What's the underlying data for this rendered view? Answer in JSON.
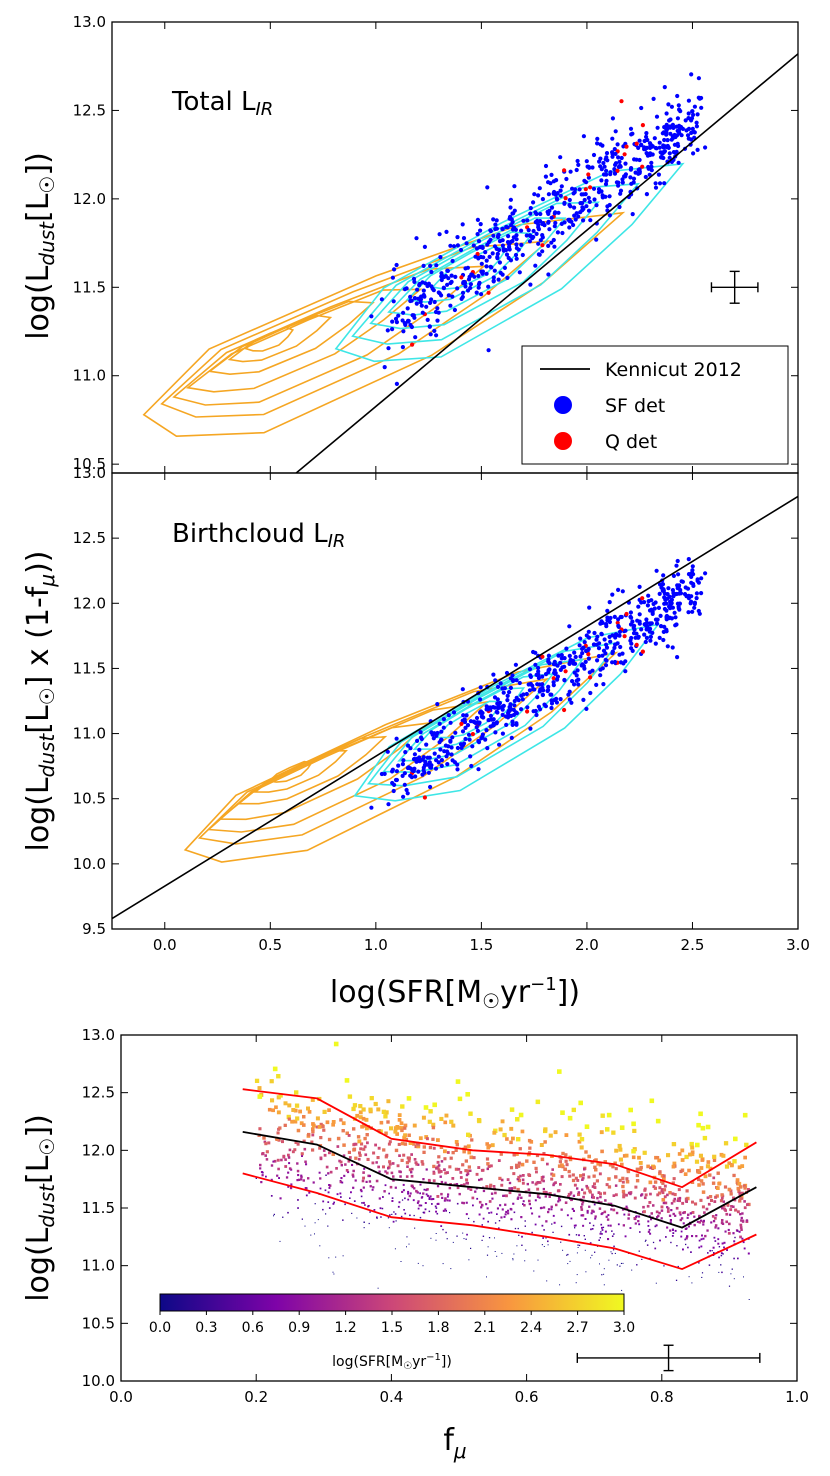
{
  "panel1": {
    "title": "Total L",
    "title_sub": "IR",
    "ylabel_main": "log(L",
    "ylabel_sub": "dust",
    "ylabel_tail": "[L",
    "ylabel_sun": "☉",
    "ylabel_end": "])",
    "xlim": [
      -0.25,
      3.0
    ],
    "ylim": [
      10.45,
      13.0
    ],
    "yticks": [
      "10.5",
      "11.0",
      "11.5",
      "12.0",
      "12.5",
      "13.0"
    ],
    "kennicutt_2012_line": {
      "x": [
        -0.25,
        3.0
      ],
      "y": [
        9.58,
        12.82
      ]
    },
    "errorbar": {
      "x": 2.7,
      "y": 11.5,
      "xerr": 0.11,
      "yerr": 0.09
    },
    "legend": [
      {
        "label": "Kennicut 2012",
        "kind": "line",
        "color": "#000000"
      },
      {
        "label": "SF det",
        "kind": "marker",
        "color": "#0000ff"
      },
      {
        "label": "Q det",
        "kind": "marker",
        "color": "#ff0000"
      }
    ]
  },
  "panel2": {
    "title": "Birthcloud L",
    "title_sub": "IR",
    "ylabel": "log(L_dust[L☉] x (1-f_μ))",
    "ylabel_a": "log(L",
    "ylabel_sub1": "dust",
    "ylabel_b": "[L",
    "ylabel_sun": "☉",
    "ylabel_c": "] x (1-f",
    "ylabel_sub2": "μ",
    "ylabel_d": "))",
    "xlim": [
      -0.25,
      3.0
    ],
    "ylim": [
      9.5,
      13.0
    ],
    "xticks": [
      "0.0",
      "0.5",
      "1.0",
      "1.5",
      "2.0",
      "2.5",
      "3.0"
    ],
    "yticks": [
      "9.5",
      "10.0",
      "10.5",
      "11.0",
      "11.5",
      "12.0",
      "12.5",
      "13.0"
    ],
    "xlabel_a": "log(SFR[M",
    "xlabel_sun": "☉",
    "xlabel_b": "yr",
    "xlabel_sup": "−1",
    "xlabel_c": "])",
    "kennicutt_2012_line": {
      "x": [
        -0.25,
        3.0
      ],
      "y": [
        9.58,
        12.82
      ]
    }
  },
  "panel3": {
    "ylabel_main": "log(L",
    "ylabel_sub": "dust",
    "ylabel_tail": "[L",
    "ylabel_sun": "☉",
    "ylabel_end": "])",
    "xlabel_main": "f",
    "xlabel_sub": "μ",
    "xlim": [
      0.0,
      1.0
    ],
    "ylim": [
      10.0,
      13.0
    ],
    "xticks": [
      "0.0",
      "0.2",
      "0.4",
      "0.6",
      "0.8",
      "1.0"
    ],
    "yticks": [
      "10.0",
      "10.5",
      "11.0",
      "11.5",
      "12.0",
      "12.5",
      "13.0"
    ],
    "median_line": {
      "x": [
        0.18,
        0.29,
        0.4,
        0.52,
        0.63,
        0.73,
        0.83,
        0.94
      ],
      "y": [
        12.16,
        12.05,
        11.75,
        11.68,
        11.62,
        11.52,
        11.33,
        11.68
      ]
    },
    "upper_line": {
      "x": [
        0.18,
        0.29,
        0.4,
        0.52,
        0.63,
        0.73,
        0.83,
        0.94
      ],
      "y": [
        12.53,
        12.45,
        12.1,
        12.0,
        11.96,
        11.88,
        11.68,
        12.07
      ]
    },
    "lower_line": {
      "x": [
        0.18,
        0.29,
        0.4,
        0.52,
        0.63,
        0.73,
        0.83,
        0.94
      ],
      "y": [
        11.8,
        11.63,
        11.42,
        11.35,
        11.25,
        11.15,
        10.97,
        11.27
      ]
    },
    "errorbar": {
      "x": 0.81,
      "y": 10.2,
      "xerr": 0.135,
      "yerr": 0.11
    },
    "colorbar": {
      "label": "log(SFR[M☉yr⁻¹])",
      "label_a": "log(SFR[M",
      "label_sun": "☉",
      "label_b": "yr",
      "label_sup": "−1",
      "label_c": "])",
      "ticks": [
        "0.0",
        "0.3",
        "0.6",
        "0.9",
        "1.2",
        "1.5",
        "1.8",
        "2.1",
        "2.4",
        "2.7",
        "3.0"
      ],
      "range": [
        0.0,
        3.0
      ]
    }
  },
  "chart_data": [
    {
      "type": "scatter",
      "title": "Total L_IR",
      "xlabel": "log(SFR[M☉yr⁻¹])",
      "ylabel": "log(L_dust[L☉])",
      "xlim": [
        -0.25,
        3.0
      ],
      "ylim": [
        10.45,
        13.0
      ],
      "series": [
        {
          "name": "Kennicut 2012",
          "kind": "line",
          "x": [
            -0.25,
            3.0
          ],
          "y": [
            9.58,
            12.82
          ]
        },
        {
          "name": "SF det",
          "kind": "scatter",
          "trend": {
            "x": [
              1.0,
              2.5
            ],
            "y": [
              11.25,
              12.45
            ]
          }
        },
        {
          "name": "Q det",
          "kind": "scatter"
        }
      ]
    },
    {
      "type": "scatter",
      "title": "Birthcloud L_IR",
      "xlabel": "log(SFR[M☉yr⁻¹])",
      "ylabel": "log(L_dust[L☉] x (1-f_μ))",
      "xlim": [
        -0.25,
        3.0
      ],
      "ylim": [
        9.5,
        13.0
      ],
      "series": [
        {
          "name": "Kennicut 2012",
          "kind": "line",
          "x": [
            -0.25,
            3.0
          ],
          "y": [
            9.58,
            12.82
          ]
        }
      ]
    },
    {
      "type": "scatter",
      "xlabel": "f_μ",
      "ylabel": "log(L_dust[L☉])",
      "xlim": [
        0.0,
        1.0
      ],
      "ylim": [
        10.0,
        13.0
      ],
      "colorbar_label": "log(SFR[M☉yr⁻¹])",
      "series": [
        {
          "name": "median",
          "kind": "line",
          "color": "#000000",
          "x": [
            0.18,
            0.29,
            0.4,
            0.52,
            0.63,
            0.73,
            0.83,
            0.94
          ],
          "y": [
            12.16,
            12.05,
            11.75,
            11.68,
            11.62,
            11.52,
            11.33,
            11.68
          ]
        },
        {
          "name": "upper",
          "kind": "line",
          "color": "#ff0000",
          "x": [
            0.18,
            0.29,
            0.4,
            0.52,
            0.63,
            0.73,
            0.83,
            0.94
          ],
          "y": [
            12.53,
            12.45,
            12.1,
            12.0,
            11.96,
            11.88,
            11.68,
            12.07
          ]
        },
        {
          "name": "lower",
          "kind": "line",
          "color": "#ff0000",
          "x": [
            0.18,
            0.29,
            0.4,
            0.52,
            0.63,
            0.73,
            0.83,
            0.94
          ],
          "y": [
            11.8,
            11.63,
            11.42,
            11.35,
            11.25,
            11.15,
            10.97,
            11.27
          ]
        }
      ]
    }
  ],
  "colors": {
    "sf": "#0000ff",
    "q": "#ff0000",
    "orange_contour": "#f5a623",
    "cyan_contour": "#3ee6e6"
  }
}
